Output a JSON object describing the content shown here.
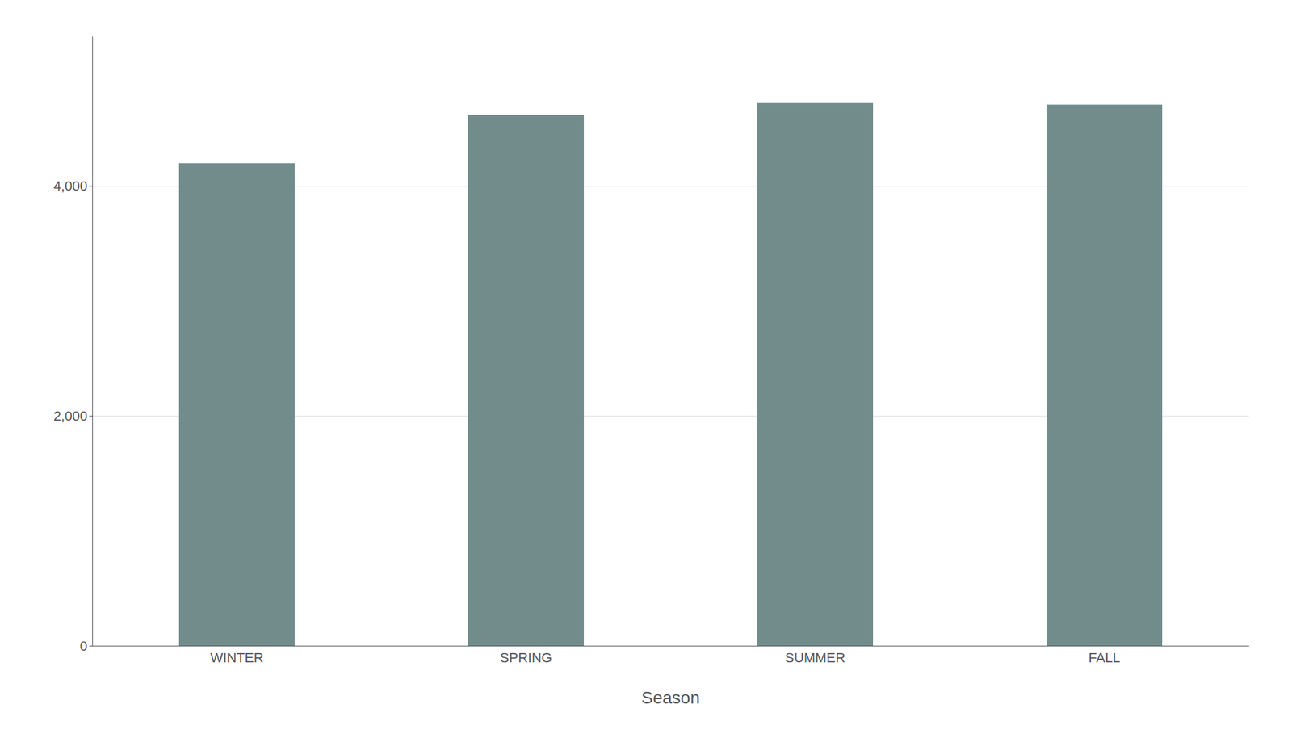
{
  "chart_data": {
    "type": "bar",
    "categories": [
      "WINTER",
      "SPRING",
      "SUMMER",
      "FALL"
    ],
    "values": [
      4200,
      4620,
      4730,
      4710
    ],
    "color": "#728c8c",
    "xlabel": "Season",
    "ylim": [
      0,
      5300
    ],
    "yticks": [
      0,
      2000,
      4000
    ],
    "grid": true
  }
}
